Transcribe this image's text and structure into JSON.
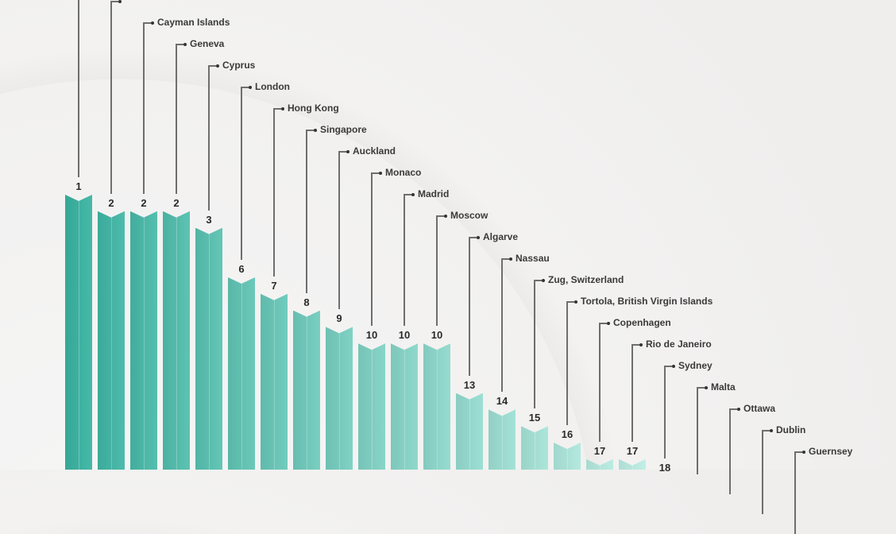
{
  "chart_data": {
    "type": "bar",
    "title": "",
    "xlabel": "",
    "ylabel": "",
    "categories": [
      "",
      "",
      "Cayman Islands",
      "Geneva",
      "Cyprus",
      "London",
      "Hong Kong",
      "Singapore",
      "Auckland",
      "Monaco",
      "Madrid",
      "Moscow",
      "Algarve",
      "Nassau",
      "Zug, Switzerland",
      "Tortola, British Virgin Islands",
      "Copenhagen",
      "Rio de Janeiro",
      "Sydney",
      "Malta",
      "Ottawa",
      "Dublin",
      "Guernsey"
    ],
    "values": [
      1,
      2,
      2,
      2,
      3,
      6,
      7,
      8,
      9,
      10,
      10,
      10,
      13,
      14,
      15,
      16,
      17,
      17,
      18,
      null,
      null,
      null,
      null
    ],
    "axis": "rank (lower bar = higher rank number)",
    "grid": false,
    "colors": {
      "start": "#35a796",
      "end": "#d3ede6",
      "background": "#f0efee"
    }
  }
}
